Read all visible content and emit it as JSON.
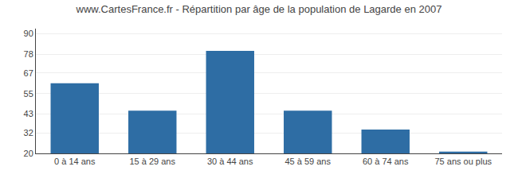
{
  "chart_data": {
    "type": "bar",
    "title": "www.CartesFrance.fr - Répartition par âge de la population de Lagarde en 2007",
    "categories": [
      "0 à 14 ans",
      "15 à 29 ans",
      "30 à 44 ans",
      "45 à 59 ans",
      "60 à 74 ans",
      "75 ans ou plus"
    ],
    "values": [
      61,
      45,
      80,
      45,
      34,
      21
    ],
    "color": "#2e6da4",
    "ylim": [
      20,
      93
    ],
    "yticks": [
      20,
      32,
      43,
      55,
      67,
      78,
      90
    ],
    "grid": true
  }
}
